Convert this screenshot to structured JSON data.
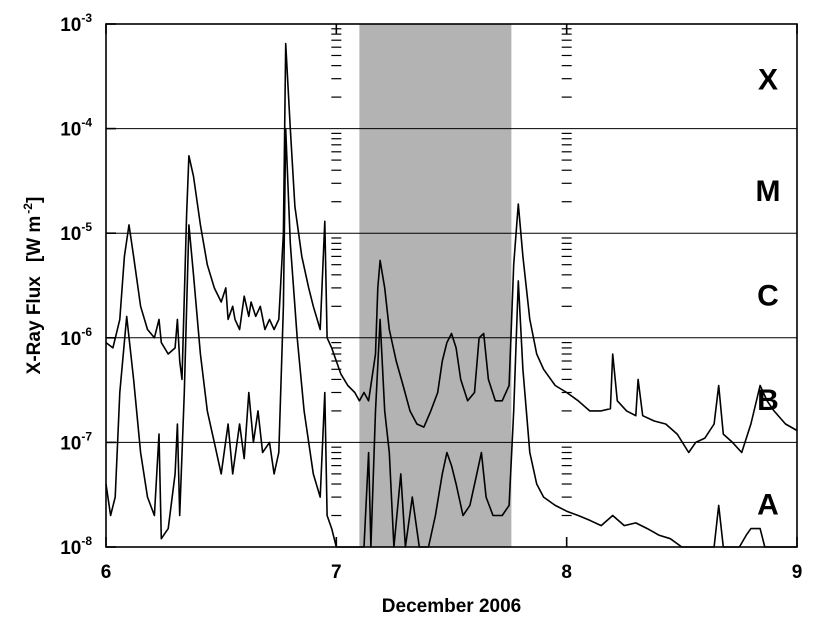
{
  "chart_data": {
    "type": "line",
    "xlabel": "December 2006",
    "ylabel": "X-Ray Flux",
    "ylabel_unit_base": "[W m",
    "ylabel_unit_exp": "-2",
    "ylabel_unit_close": "]",
    "xlim": [
      6,
      9
    ],
    "ylim": [
      1e-08,
      0.001
    ],
    "yscale": "log",
    "x_ticks": [
      "6",
      "7",
      "8",
      "9"
    ],
    "y_ticks": [
      {
        "base": "10",
        "exp": "-3",
        "value": 0.001
      },
      {
        "base": "10",
        "exp": "-4",
        "value": 0.0001
      },
      {
        "base": "10",
        "exp": "-5",
        "value": 1e-05
      },
      {
        "base": "10",
        "exp": "-6",
        "value": 1e-06
      },
      {
        "base": "10",
        "exp": "-7",
        "value": 1e-07
      },
      {
        "base": "10",
        "exp": "-8",
        "value": 1e-08
      }
    ],
    "flare_classes": [
      {
        "label": "X",
        "value": 0.0003
      },
      {
        "label": "M",
        "value": 2.6e-05
      },
      {
        "label": "C",
        "value": 2.6e-06
      },
      {
        "label": "B",
        "value": 2.6e-07
      },
      {
        "label": "A",
        "value": 2.6e-08
      }
    ],
    "shaded_interval": [
      7.1,
      7.76
    ],
    "shade_color": "#b3b3b3",
    "day_boundaries": [
      7,
      8
    ],
    "series": [
      {
        "color": "#000000",
        "points": [
          [
            6.0,
            9e-07
          ],
          [
            6.03,
            8e-07
          ],
          [
            6.06,
            1.5e-06
          ],
          [
            6.08,
            6e-06
          ],
          [
            6.1,
            1.2e-05
          ],
          [
            6.12,
            6e-06
          ],
          [
            6.15,
            2e-06
          ],
          [
            6.18,
            1.2e-06
          ],
          [
            6.21,
            1e-06
          ],
          [
            6.23,
            1.5e-06
          ],
          [
            6.24,
            9e-07
          ],
          [
            6.27,
            7e-07
          ],
          [
            6.3,
            8e-07
          ],
          [
            6.31,
            1.5e-06
          ],
          [
            6.32,
            6e-07
          ],
          [
            6.33,
            4e-07
          ],
          [
            6.35,
            1.5e-05
          ],
          [
            6.36,
            5.5e-05
          ],
          [
            6.38,
            3.5e-05
          ],
          [
            6.41,
            1.2e-05
          ],
          [
            6.44,
            5e-06
          ],
          [
            6.47,
            3e-06
          ],
          [
            6.5,
            2.2e-06
          ],
          [
            6.52,
            3e-06
          ],
          [
            6.53,
            1.5e-06
          ],
          [
            6.55,
            2e-06
          ],
          [
            6.56,
            1.5e-06
          ],
          [
            6.58,
            1.2e-06
          ],
          [
            6.6,
            2.5e-06
          ],
          [
            6.62,
            1.6e-06
          ],
          [
            6.63,
            2.2e-06
          ],
          [
            6.65,
            1.6e-06
          ],
          [
            6.67,
            2e-06
          ],
          [
            6.69,
            1.2e-06
          ],
          [
            6.71,
            1.5e-06
          ],
          [
            6.73,
            1.2e-06
          ],
          [
            6.75,
            1.5e-06
          ],
          [
            6.77,
            1e-05
          ],
          [
            6.78,
            0.00065
          ],
          [
            6.8,
            0.0001
          ],
          [
            6.82,
            1.8e-05
          ],
          [
            6.85,
            6e-06
          ],
          [
            6.88,
            3e-06
          ],
          [
            6.9,
            2e-06
          ],
          [
            6.93,
            1.2e-06
          ],
          [
            6.95,
            1.3e-05
          ],
          [
            6.96,
            1e-06
          ],
          [
            6.98,
            8e-07
          ],
          [
            7.0,
            6e-07
          ],
          [
            7.02,
            4.5e-07
          ],
          [
            7.05,
            3.5e-07
          ],
          [
            7.08,
            3e-07
          ],
          [
            7.1,
            2.5e-07
          ],
          [
            7.12,
            3e-07
          ],
          [
            7.14,
            2.5e-07
          ],
          [
            7.17,
            7e-07
          ],
          [
            7.18,
            3e-06
          ],
          [
            7.19,
            5.5e-06
          ],
          [
            7.21,
            3e-06
          ],
          [
            7.23,
            1.2e-06
          ],
          [
            7.26,
            6e-07
          ],
          [
            7.29,
            3.5e-07
          ],
          [
            7.32,
            2e-07
          ],
          [
            7.35,
            1.5e-07
          ],
          [
            7.38,
            1.4e-07
          ],
          [
            7.41,
            2e-07
          ],
          [
            7.44,
            3e-07
          ],
          [
            7.46,
            6e-07
          ],
          [
            7.48,
            9e-07
          ],
          [
            7.5,
            1.1e-06
          ],
          [
            7.52,
            8e-07
          ],
          [
            7.54,
            4e-07
          ],
          [
            7.57,
            2.5e-07
          ],
          [
            7.6,
            3e-07
          ],
          [
            7.62,
            1e-06
          ],
          [
            7.64,
            1.1e-06
          ],
          [
            7.66,
            4e-07
          ],
          [
            7.69,
            2.5e-07
          ],
          [
            7.72,
            2.5e-07
          ],
          [
            7.75,
            3.5e-07
          ],
          [
            7.77,
            5e-06
          ],
          [
            7.79,
            1.9e-05
          ],
          [
            7.81,
            6e-06
          ],
          [
            7.84,
            1.5e-06
          ],
          [
            7.87,
            7e-07
          ],
          [
            7.9,
            5e-07
          ],
          [
            7.95,
            3.5e-07
          ],
          [
            8.0,
            3e-07
          ],
          [
            8.05,
            2.5e-07
          ],
          [
            8.1,
            2e-07
          ],
          [
            8.15,
            2e-07
          ],
          [
            8.19,
            2.1e-07
          ],
          [
            8.2,
            7e-07
          ],
          [
            8.22,
            2.5e-07
          ],
          [
            8.26,
            2e-07
          ],
          [
            8.3,
            1.8e-07
          ],
          [
            8.31,
            4e-07
          ],
          [
            8.33,
            1.8e-07
          ],
          [
            8.38,
            1.6e-07
          ],
          [
            8.43,
            1.5e-07
          ],
          [
            8.48,
            1.2e-07
          ],
          [
            8.53,
            8e-08
          ],
          [
            8.56,
            1e-07
          ],
          [
            8.6,
            1.1e-07
          ],
          [
            8.64,
            1.5e-07
          ],
          [
            8.66,
            3.5e-07
          ],
          [
            8.68,
            1.2e-07
          ],
          [
            8.72,
            1e-07
          ],
          [
            8.76,
            8e-08
          ],
          [
            8.8,
            1.5e-07
          ],
          [
            8.84,
            3.5e-07
          ],
          [
            8.87,
            2.5e-07
          ],
          [
            8.9,
            2e-07
          ],
          [
            8.95,
            1.5e-07
          ],
          [
            9.0,
            1.3e-07
          ]
        ]
      },
      {
        "color": "#000000",
        "points": [
          [
            6.0,
            4e-08
          ],
          [
            6.02,
            2e-08
          ],
          [
            6.04,
            3e-08
          ],
          [
            6.06,
            3e-07
          ],
          [
            6.09,
            1.6e-06
          ],
          [
            6.12,
            4e-07
          ],
          [
            6.15,
            8e-08
          ],
          [
            6.18,
            3e-08
          ],
          [
            6.21,
            2e-08
          ],
          [
            6.23,
            1.2e-07
          ],
          [
            6.24,
            1.2e-08
          ],
          [
            6.27,
            1.5e-08
          ],
          [
            6.3,
            5e-08
          ],
          [
            6.31,
            1.5e-07
          ],
          [
            6.32,
            2e-08
          ],
          [
            6.34,
            3e-07
          ],
          [
            6.36,
            1.2e-05
          ],
          [
            6.38,
            4e-06
          ],
          [
            6.41,
            7e-07
          ],
          [
            6.44,
            2e-07
          ],
          [
            6.47,
            1e-07
          ],
          [
            6.5,
            5e-08
          ],
          [
            6.53,
            1.5e-07
          ],
          [
            6.55,
            5e-08
          ],
          [
            6.58,
            1.5e-07
          ],
          [
            6.6,
            7e-08
          ],
          [
            6.62,
            3e-07
          ],
          [
            6.64,
            1e-07
          ],
          [
            6.66,
            2e-07
          ],
          [
            6.68,
            8e-08
          ],
          [
            6.71,
            1e-07
          ],
          [
            6.73,
            5e-08
          ],
          [
            6.75,
            8e-08
          ],
          [
            6.77,
            2e-06
          ],
          [
            6.78,
            0.0001
          ],
          [
            6.8,
            8e-06
          ],
          [
            6.83,
            1e-06
          ],
          [
            6.86,
            2e-07
          ],
          [
            6.9,
            5e-08
          ],
          [
            6.93,
            3e-08
          ],
          [
            6.95,
            3e-07
          ],
          [
            6.96,
            2e-08
          ],
          [
            6.98,
            1.5e-08
          ],
          [
            7.0,
            1e-08
          ],
          [
            7.12,
            1e-08
          ],
          [
            7.14,
            8e-08
          ],
          [
            7.15,
            1e-08
          ],
          [
            7.17,
            2e-07
          ],
          [
            7.19,
            1.5e-06
          ],
          [
            7.21,
            2e-07
          ],
          [
            7.23,
            8e-08
          ],
          [
            7.25,
            1e-08
          ],
          [
            7.28,
            5e-08
          ],
          [
            7.3,
            1e-08
          ],
          [
            7.33,
            3e-08
          ],
          [
            7.36,
            1e-08
          ],
          [
            7.4,
            1e-08
          ],
          [
            7.43,
            2e-08
          ],
          [
            7.46,
            5e-08
          ],
          [
            7.48,
            8e-08
          ],
          [
            7.5,
            6e-08
          ],
          [
            7.52,
            4e-08
          ],
          [
            7.55,
            2e-08
          ],
          [
            7.58,
            2.5e-08
          ],
          [
            7.61,
            5e-08
          ],
          [
            7.63,
            8e-08
          ],
          [
            7.65,
            3e-08
          ],
          [
            7.68,
            2e-08
          ],
          [
            7.72,
            2e-08
          ],
          [
            7.75,
            2.5e-08
          ],
          [
            7.77,
            2e-07
          ],
          [
            7.79,
            3.5e-06
          ],
          [
            7.81,
            5e-07
          ],
          [
            7.84,
            8e-08
          ],
          [
            7.87,
            4e-08
          ],
          [
            7.9,
            3e-08
          ],
          [
            7.95,
            2.5e-08
          ],
          [
            8.0,
            2.2e-08
          ],
          [
            8.05,
            2e-08
          ],
          [
            8.1,
            1.8e-08
          ],
          [
            8.15,
            1.6e-08
          ],
          [
            8.2,
            2e-08
          ],
          [
            8.25,
            1.6e-08
          ],
          [
            8.3,
            1.7e-08
          ],
          [
            8.35,
            1.5e-08
          ],
          [
            8.4,
            1.3e-08
          ],
          [
            8.45,
            1.2e-08
          ],
          [
            8.5,
            1e-08
          ],
          [
            8.55,
            1e-08
          ],
          [
            8.64,
            1e-08
          ],
          [
            8.66,
            2.5e-08
          ],
          [
            8.68,
            1e-08
          ],
          [
            8.72,
            1e-08
          ],
          [
            8.75,
            1e-08
          ],
          [
            8.78,
            1.3e-08
          ],
          [
            8.8,
            1.5e-08
          ],
          [
            8.84,
            1.5e-08
          ],
          [
            8.86,
            1e-08
          ],
          [
            9.0,
            1e-08
          ]
        ]
      }
    ]
  }
}
